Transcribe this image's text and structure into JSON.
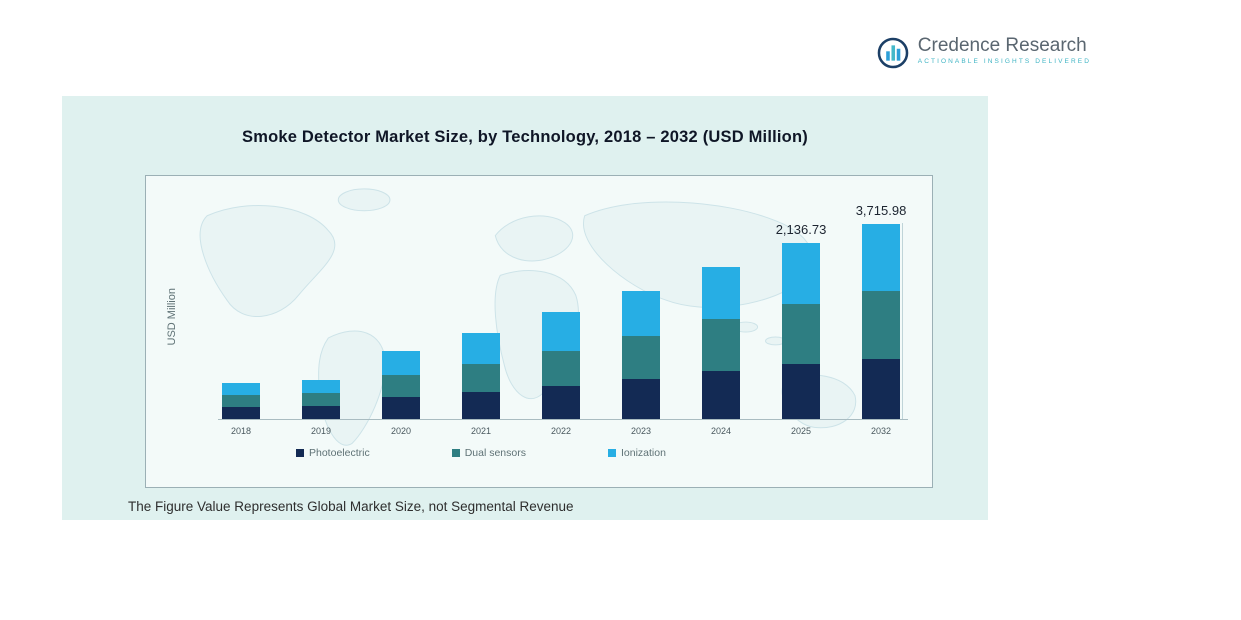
{
  "logo": {
    "name": "Credence Research",
    "tagline": "Actionable Insights Delivered"
  },
  "panel": {
    "title": "Smoke Detector Market Size, by Technology, 2018 – 2032 (USD Million)",
    "footnote": "The Figure Value Represents Global Market Size, not Segmental Revenue"
  },
  "chart_data": {
    "type": "bar",
    "subtype": "stacked",
    "title": "Smoke Detector Market Size, by Technology, 2018 – 2032 (USD Million)",
    "xlabel": "",
    "ylabel": "USD Million",
    "grid": false,
    "legend_position": "bottom",
    "categories": [
      "2018",
      "2019",
      "2020",
      "2021",
      "2022",
      "2023",
      "2024",
      "2025",
      "2032"
    ],
    "series": [
      {
        "name": "Photoelectric",
        "color": "#132a54",
        "values": [
          146,
          158,
          267,
          328,
          401,
          486,
          583,
          668,
          1143.4
        ]
      },
      {
        "name": "Dual sensors",
        "color": "#2e7e82",
        "values": [
          146,
          158,
          267,
          340,
          425,
          522,
          631,
          729,
          1295.8
        ]
      },
      {
        "name": "Ionization",
        "color": "#27aee4",
        "values": [
          145,
          158,
          292,
          376,
          473,
          546,
          631,
          739.73,
          1276.78
        ]
      }
    ],
    "totals_note": "Only 2025 and 2032 totals are labeled in the figure; other values are estimated from bar heights.",
    "data_labels": [
      {
        "category": "2025",
        "text": "2,136.73",
        "value": 2136.73
      },
      {
        "category": "2032",
        "text": "3,715.98",
        "value": 3715.98
      }
    ]
  }
}
